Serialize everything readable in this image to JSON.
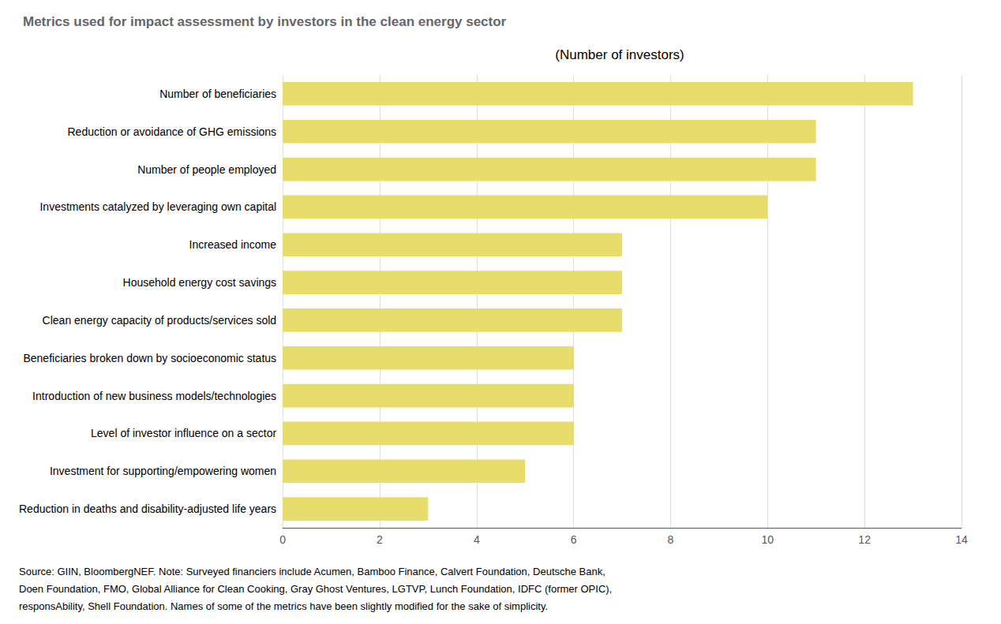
{
  "chart_data": {
    "type": "bar",
    "orientation": "horizontal",
    "title": "Metrics used for impact assessment by investors in the clean energy sector",
    "subtitle": "(Number of investors)",
    "annotations": [
      "Source: GIIN, BloombergNEF. Note: Surveyed financiers include Acumen, Bamboo Finance, Calvert Foundation, Deutsche Bank,",
      "Doen Foundation, FMO, Global Alliance for Clean Cooking, Gray Ghost Ventures, LGTVP, Lunch Foundation, IDFC (former OPIC),",
      "responsAbility, Shell Foundation. Names of some of the metrics have been slightly modified for the sake of simplicity."
    ],
    "categories": [
      "Reduction in deaths and disability-adjusted life years",
      "Investment for supporting/empowering women",
      "Level of investor influence on a sector",
      "Introduction of new business models/technologies",
      "Beneficiaries broken down by socioeconomic status",
      "Clean energy capacity of products/services sold",
      "Household energy cost savings",
      "Increased income",
      "Investments catalyzed by leveraging own capital",
      "Number of people employed",
      "Reduction or avoidance of GHG emissions",
      "Number of beneficiaries"
    ],
    "values": [
      3,
      5,
      6,
      6,
      6,
      7,
      7,
      7,
      10,
      11,
      11,
      13
    ],
    "color": "#e8dc6a",
    "xlim": [
      0,
      14
    ],
    "xticks": [
      0,
      2,
      4,
      6,
      8,
      10,
      12,
      14
    ],
    "grid": true
  }
}
